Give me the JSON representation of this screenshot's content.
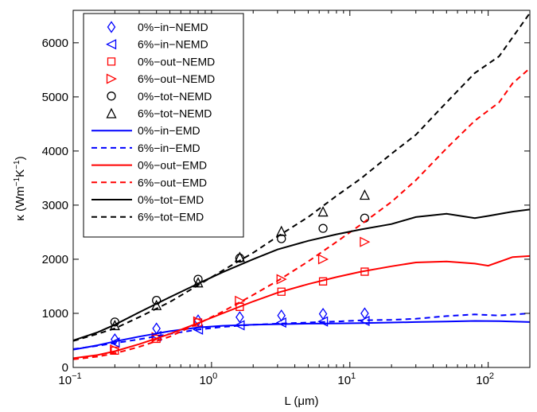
{
  "chart_data": {
    "type": "line",
    "xlabel": "L (μm)",
    "ylabel_base": "κ (Wm",
    "ylabel_exp1": "−1",
    "ylabel_mid": "K",
    "ylabel_exp2": "−1",
    "ylabel_end": ")",
    "xscale": "log",
    "xlim": [
      0.1,
      200
    ],
    "ylim": [
      0,
      6600
    ],
    "grid": false,
    "legend_position": "top-left",
    "x_ticks": [
      {
        "value": 0.1,
        "base": "10",
        "exp": "−1"
      },
      {
        "value": 1,
        "base": "10",
        "exp": "0"
      },
      {
        "value": 10,
        "base": "10",
        "exp": "1"
      },
      {
        "value": 100,
        "base": "10",
        "exp": "2"
      }
    ],
    "y_ticks": [
      {
        "value": 0,
        "label": "0"
      },
      {
        "value": 1000,
        "label": "1000"
      },
      {
        "value": 2000,
        "label": "2000"
      },
      {
        "value": 3000,
        "label": "3000"
      },
      {
        "value": 4000,
        "label": "4000"
      },
      {
        "value": 5000,
        "label": "5000"
      },
      {
        "value": 6000,
        "label": "6000"
      }
    ],
    "series": [
      {
        "name": "0%−in−NEMD",
        "kind": "marker",
        "marker": "diamond",
        "color": "#0000ff",
        "x": [
          0.2,
          0.4,
          0.8,
          1.6,
          3.2,
          6.4,
          12.8
        ],
        "y": [
          520,
          720,
          870,
          930,
          960,
          990,
          1000
        ]
      },
      {
        "name": "6%−in−NEMD",
        "kind": "marker",
        "marker": "triangle-left",
        "color": "#0000ff",
        "x": [
          0.2,
          0.4,
          0.8,
          1.6,
          3.2,
          6.4,
          12.8
        ],
        "y": [
          460,
          580,
          700,
          780,
          830,
          850,
          860
        ]
      },
      {
        "name": "0%−out−NEMD",
        "kind": "marker",
        "marker": "square",
        "color": "#ff0000",
        "x": [
          0.2,
          0.4,
          0.8,
          1.6,
          3.2,
          6.4,
          12.8
        ],
        "y": [
          310,
          530,
          830,
          1120,
          1400,
          1590,
          1770
        ]
      },
      {
        "name": "6%−out−NEMD",
        "kind": "marker",
        "marker": "triangle-right",
        "color": "#ff0000",
        "x": [
          0.2,
          0.4,
          0.8,
          1.6,
          3.2,
          6.4,
          12.8
        ],
        "y": [
          330,
          560,
          850,
          1230,
          1630,
          2000,
          2320
        ]
      },
      {
        "name": "0%−tot−NEMD",
        "kind": "marker",
        "marker": "circle",
        "color": "#000000",
        "x": [
          0.2,
          0.4,
          0.8,
          1.6,
          3.2,
          6.4,
          12.8
        ],
        "y": [
          840,
          1240,
          1630,
          2020,
          2380,
          2570,
          2760
        ]
      },
      {
        "name": "6%−tot−NEMD",
        "kind": "marker",
        "marker": "triangle-up",
        "color": "#000000",
        "x": [
          0.2,
          0.4,
          0.8,
          1.6,
          3.2,
          6.4,
          12.8
        ],
        "y": [
          780,
          1150,
          1570,
          2040,
          2520,
          2880,
          3190
        ]
      },
      {
        "name": "0%−in−EMD",
        "kind": "line",
        "dash": "solid",
        "color": "#0000ff",
        "x": [
          0.1,
          0.15,
          0.2,
          0.3,
          0.5,
          0.8,
          1.2,
          2,
          3,
          5,
          8,
          12,
          20,
          30,
          50,
          80,
          120,
          200
        ],
        "y": [
          330,
          410,
          480,
          570,
          670,
          740,
          770,
          790,
          800,
          810,
          815,
          820,
          830,
          840,
          850,
          860,
          855,
          840
        ]
      },
      {
        "name": "6%−in−EMD",
        "kind": "line",
        "dash": "dashed",
        "color": "#0000ff",
        "x": [
          0.1,
          0.15,
          0.2,
          0.3,
          0.5,
          0.8,
          1.2,
          2,
          3,
          5,
          8,
          12,
          20,
          30,
          50,
          80,
          120,
          200
        ],
        "y": [
          340,
          400,
          450,
          520,
          620,
          700,
          750,
          790,
          810,
          830,
          850,
          870,
          880,
          900,
          950,
          980,
          960,
          1000
        ]
      },
      {
        "name": "0%−out−EMD",
        "kind": "line",
        "dash": "solid",
        "color": "#ff0000",
        "x": [
          0.1,
          0.15,
          0.2,
          0.3,
          0.5,
          0.8,
          1.2,
          2,
          3,
          5,
          8,
          12,
          20,
          30,
          50,
          80,
          100,
          150,
          200
        ],
        "y": [
          170,
          230,
          300,
          430,
          620,
          820,
          1000,
          1220,
          1380,
          1540,
          1670,
          1770,
          1870,
          1940,
          1960,
          1920,
          1880,
          2040,
          2060
        ]
      },
      {
        "name": "6%−out−EMD",
        "kind": "line",
        "dash": "dashed",
        "color": "#ff0000",
        "x": [
          0.1,
          0.15,
          0.2,
          0.3,
          0.5,
          0.8,
          1.2,
          2,
          3,
          5,
          8,
          12,
          20,
          30,
          50,
          80,
          120,
          150,
          200
        ],
        "y": [
          150,
          200,
          260,
          380,
          570,
          810,
          1030,
          1340,
          1600,
          1960,
          2320,
          2640,
          3060,
          3460,
          4050,
          4560,
          4900,
          5250,
          5530
        ]
      },
      {
        "name": "0%−tot−EMD",
        "kind": "line",
        "dash": "solid",
        "color": "#000000",
        "x": [
          0.1,
          0.15,
          0.2,
          0.3,
          0.5,
          0.8,
          1.2,
          2,
          3,
          5,
          8,
          12,
          20,
          30,
          50,
          80,
          100,
          150,
          200
        ],
        "y": [
          500,
          650,
          790,
          1020,
          1300,
          1550,
          1760,
          2000,
          2180,
          2340,
          2460,
          2550,
          2650,
          2780,
          2840,
          2760,
          2800,
          2880,
          2920
        ]
      },
      {
        "name": "6%−tot−EMD",
        "kind": "line",
        "dash": "dashed",
        "color": "#000000",
        "x": [
          0.1,
          0.15,
          0.2,
          0.3,
          0.5,
          0.8,
          1.2,
          2,
          3,
          5,
          8,
          12,
          20,
          30,
          50,
          80,
          120,
          150,
          200
        ],
        "y": [
          490,
          620,
          720,
          930,
          1210,
          1520,
          1790,
          2120,
          2420,
          2780,
          3170,
          3490,
          3950,
          4300,
          4900,
          5440,
          5750,
          6100,
          6550
        ]
      }
    ]
  }
}
